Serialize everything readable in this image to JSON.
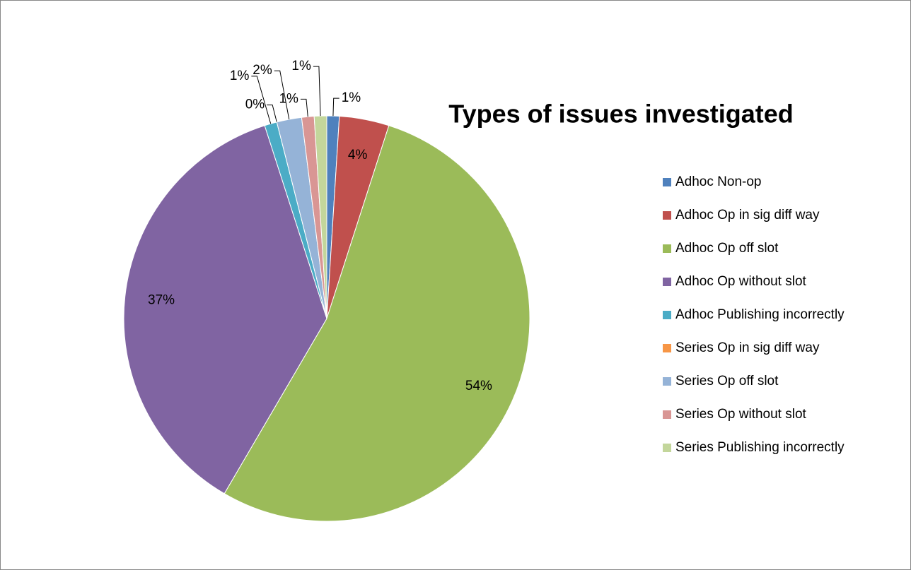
{
  "chart_data": {
    "type": "pie",
    "title": "Types of issues investigated",
    "categories": [
      "Adhoc Non-op",
      "Adhoc Op in sig diff way",
      "Adhoc Op off slot",
      "Adhoc Op without slot",
      "Adhoc Publishing incorrectly",
      "Series Op in sig diff way",
      "Series Op off slot",
      "Series Op without slot",
      "Series Publishing incorrectly"
    ],
    "values": [
      1,
      4,
      54,
      37,
      1,
      0,
      2,
      1,
      1
    ],
    "value_labels": [
      "1%",
      "4%",
      "54%",
      "37%",
      "1%",
      "0%",
      "2%",
      "1%",
      "1%"
    ],
    "colors": [
      "#4f81bd",
      "#c0504d",
      "#9bbb59",
      "#8064a2",
      "#4bacc6",
      "#f79646",
      "#95b3d7",
      "#d99694",
      "#c3d69b"
    ],
    "legend": "right"
  }
}
